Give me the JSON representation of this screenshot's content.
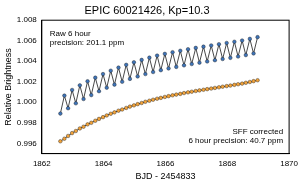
{
  "chart_data": {
    "type": "scatter",
    "title": "EPIC 60021426, Kp=10.3",
    "x_label": "BJD - 2454833",
    "y_label": "Relative Brightness",
    "xlim": [
      1862,
      1870
    ],
    "xticks": [
      1862,
      1864,
      1866,
      1868,
      1870
    ],
    "ylim": [
      0.995,
      1.008
    ],
    "yticks": [
      0.996,
      0.998,
      {
        "value": 1,
        "label": "1.000"
      },
      1.002,
      1.004,
      1.006,
      1.008
    ],
    "grid": false,
    "annotations": [
      {
        "lines": [
          "Raw 6 hour",
          "precision: 201.1 ppm"
        ]
      },
      {
        "lines": [
          "SFF corrected",
          "6 hour precision: 40.7 ppm"
        ]
      }
    ],
    "x": [
      1862.6,
      1862.73,
      1862.85,
      1862.98,
      1863.1,
      1863.23,
      1863.35,
      1863.48,
      1863.6,
      1863.73,
      1863.85,
      1863.98,
      1864.1,
      1864.23,
      1864.35,
      1864.48,
      1864.6,
      1864.73,
      1864.85,
      1864.98,
      1865.1,
      1865.23,
      1865.35,
      1865.48,
      1865.6,
      1865.73,
      1865.85,
      1865.98,
      1866.1,
      1866.23,
      1866.35,
      1866.48,
      1866.6,
      1866.73,
      1866.85,
      1866.98,
      1867.1,
      1867.23,
      1867.35,
      1867.48,
      1867.6,
      1867.73,
      1867.85,
      1867.98,
      1868.1,
      1868.23,
      1868.35,
      1868.48,
      1868.6,
      1868.73,
      1868.85,
      1868.98
    ],
    "series": [
      {
        "name": "Raw",
        "color": "#3f74b8",
        "marker": "circle",
        "line_style": "solid",
        "values": [
          0.9989,
          1.00065,
          0.99942,
          1.0012,
          0.9999,
          1.00165,
          1.00032,
          1.00205,
          1.0007,
          1.0024,
          1.00108,
          1.00275,
          1.00142,
          1.00308,
          1.00172,
          1.00338,
          1.002,
          1.00365,
          1.00228,
          1.0039,
          1.00252,
          1.00413,
          1.00275,
          1.00435,
          1.00295,
          1.00455,
          1.00313,
          1.00472,
          1.0033,
          1.00488,
          1.00345,
          1.00502,
          1.0036,
          1.00517,
          1.00373,
          1.0053,
          1.00386,
          1.00542,
          1.00398,
          1.00554,
          1.0041,
          1.00566,
          1.00422,
          1.00578,
          1.00433,
          1.0059,
          1.00446,
          1.00602,
          1.0046,
          1.00618,
          1.00476,
          1.00635
        ]
      },
      {
        "name": "SFF corrected",
        "color": "#f2a33a",
        "marker": "circle",
        "line_style": "solid",
        "values": [
          0.9962,
          0.99645,
          0.99672,
          0.997,
          0.9972,
          0.99745,
          0.99762,
          0.99785,
          0.998,
          0.9982,
          0.99838,
          0.99855,
          0.99872,
          0.99888,
          0.99902,
          0.99918,
          0.9993,
          0.99945,
          0.99958,
          0.9997,
          0.99982,
          0.99993,
          1.00005,
          1.00015,
          1.00025,
          1.00035,
          1.00043,
          1.00052,
          1.0006,
          1.00068,
          1.00075,
          1.00082,
          1.0009,
          1.00097,
          1.00103,
          1.0011,
          1.00116,
          1.00122,
          1.00128,
          1.00134,
          1.0014,
          1.00146,
          1.00152,
          1.00158,
          1.00163,
          1.0017,
          1.00176,
          1.00182,
          1.0019,
          1.00198,
          1.00206,
          1.00215
        ]
      }
    ]
  }
}
